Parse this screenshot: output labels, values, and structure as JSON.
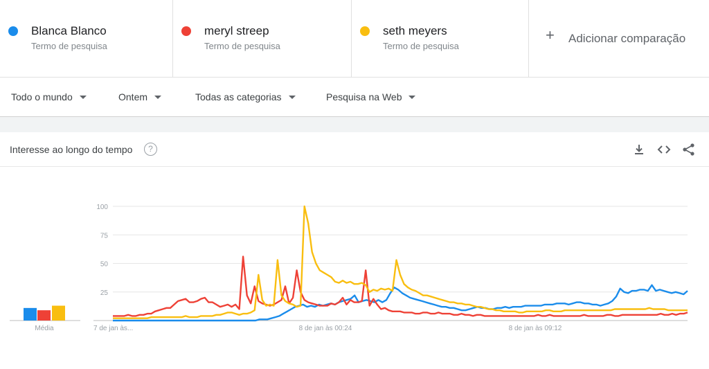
{
  "terms": [
    {
      "name": "Blanca Blanco",
      "subtitle": "Termo de pesquisa",
      "color": "#1a8ceb"
    },
    {
      "name": "meryl streep",
      "subtitle": "Termo de pesquisa",
      "color": "#ee4136"
    },
    {
      "name": "seth meyers",
      "subtitle": "Termo de pesquisa",
      "color": "#f9be10"
    }
  ],
  "add_comparison": {
    "icon": "plus-icon",
    "label": "Adicionar comparação"
  },
  "filters": {
    "region": "Todo o mundo",
    "time": "Ontem",
    "category": "Todas as categorias",
    "search_type": "Pesquisa na Web"
  },
  "card": {
    "title": "Interesse ao longo do tempo",
    "help_icon": "?",
    "icons": [
      "download-icon",
      "embed-icon",
      "share-icon"
    ]
  },
  "chart_data": {
    "type": "line",
    "x_ticks": [
      "7 de jan às...",
      "8 de jan às 00:24",
      "8 de jan às 09:12"
    ],
    "y_ticks": [
      100,
      75,
      50,
      25
    ],
    "ylim": [
      0,
      100
    ],
    "grid": true,
    "series": [
      {
        "name": "Blanca Blanco",
        "color": "#1a8ceb",
        "values": [
          0,
          0,
          0,
          0,
          0,
          0,
          0,
          0,
          0,
          0,
          0,
          0,
          0,
          0,
          0,
          0,
          0,
          0,
          0,
          0,
          0,
          0,
          0,
          0,
          0,
          0,
          0,
          0,
          0,
          0,
          0,
          0,
          0,
          0,
          0,
          0,
          0,
          1,
          1,
          1,
          2,
          3,
          4,
          6,
          8,
          10,
          12,
          13,
          14,
          12,
          13,
          12,
          14,
          13,
          14,
          15,
          14,
          16,
          17,
          18,
          19,
          22,
          16,
          17,
          18,
          17,
          16,
          18,
          16,
          18,
          24,
          29,
          27,
          24,
          22,
          20,
          19,
          18,
          17,
          16,
          15,
          14,
          13,
          12,
          12,
          11,
          11,
          10,
          9,
          9,
          10,
          11,
          12,
          11,
          11,
          10,
          10,
          11,
          11,
          12,
          11,
          12,
          12,
          12,
          13,
          13,
          13,
          13,
          13,
          14,
          14,
          14,
          15,
          15,
          15,
          14,
          15,
          16,
          16,
          15,
          15,
          14,
          14,
          13,
          14,
          15,
          17,
          21,
          28,
          25,
          24,
          26,
          26,
          27,
          27,
          26,
          31,
          26,
          27,
          26,
          25,
          24,
          25,
          24,
          23,
          26
        ]
      },
      {
        "name": "meryl streep",
        "color": "#ee4136",
        "values": [
          4,
          4,
          4,
          4,
          5,
          4,
          4,
          5,
          5,
          6,
          6,
          8,
          9,
          10,
          11,
          11,
          14,
          17,
          18,
          19,
          16,
          16,
          17,
          19,
          20,
          16,
          16,
          14,
          12,
          13,
          14,
          12,
          14,
          10,
          56,
          22,
          15,
          30,
          17,
          15,
          14,
          13,
          14,
          16,
          18,
          30,
          15,
          20,
          44,
          25,
          18,
          16,
          15,
          14,
          13,
          13,
          13,
          15,
          14,
          16,
          20,
          14,
          18,
          16,
          16,
          17,
          44,
          13,
          19,
          14,
          10,
          11,
          9,
          8,
          8,
          8,
          7,
          7,
          7,
          6,
          6,
          7,
          7,
          6,
          6,
          7,
          6,
          6,
          6,
          5,
          5,
          6,
          5,
          5,
          4,
          5,
          5,
          4,
          4,
          4,
          4,
          4,
          4,
          4,
          4,
          4,
          4,
          4,
          4,
          4,
          4,
          5,
          4,
          4,
          5,
          4,
          4,
          4,
          4,
          4,
          4,
          4,
          4,
          5,
          4,
          4,
          4,
          4,
          4,
          5,
          5,
          4,
          4,
          5,
          5,
          5,
          5,
          5,
          5,
          5,
          5,
          5,
          5,
          6,
          5,
          5,
          6,
          5,
          6,
          6,
          7
        ]
      },
      {
        "name": "seth meyers",
        "color": "#f9be10",
        "values": [
          2,
          2,
          2,
          2,
          2,
          2,
          2,
          2,
          2,
          2,
          3,
          3,
          3,
          3,
          3,
          3,
          3,
          3,
          3,
          4,
          3,
          3,
          3,
          4,
          4,
          4,
          4,
          5,
          5,
          6,
          7,
          7,
          6,
          5,
          6,
          6,
          7,
          9,
          40,
          18,
          13,
          14,
          13,
          53,
          22,
          17,
          15,
          14,
          12,
          13,
          100,
          85,
          60,
          50,
          44,
          42,
          40,
          38,
          34,
          33,
          35,
          33,
          34,
          32,
          32,
          33,
          31,
          25,
          27,
          26,
          28,
          27,
          28,
          26,
          53,
          40,
          32,
          29,
          27,
          26,
          24,
          22,
          22,
          21,
          20,
          19,
          18,
          17,
          16,
          16,
          15,
          15,
          14,
          14,
          13,
          12,
          12,
          11,
          10,
          10,
          9,
          9,
          8,
          8,
          8,
          8,
          7,
          7,
          8,
          8,
          8,
          8,
          8,
          9,
          9,
          8,
          8,
          8,
          9,
          9,
          9,
          9,
          9,
          9,
          9,
          9,
          9,
          9,
          9,
          9,
          9,
          10,
          10,
          10,
          10,
          10,
          10,
          10,
          10,
          10,
          11,
          10,
          10,
          10,
          10,
          9,
          9,
          9,
          9,
          9,
          9
        ]
      }
    ],
    "averages": {
      "label": "Média",
      "values": [
        11,
        9,
        13
      ]
    }
  }
}
